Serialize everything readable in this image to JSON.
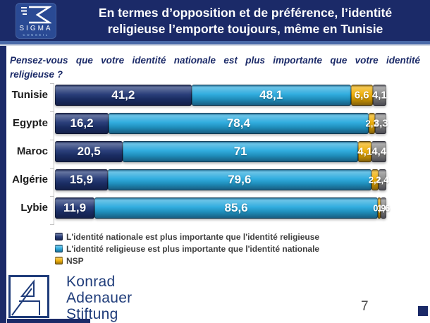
{
  "header": {
    "title_line1": "En termes d’opposition et de préférence, l’identité",
    "title_line2": "religieuse l’emporte toujours, même en Tunisie",
    "logo": {
      "name": "SIGMA",
      "sub": "CONSEIL"
    }
  },
  "question": {
    "full_text": "Pensez-vous que votre identité nationale est plus importante que votre identité religieuse ?",
    "line1": "Pensez-vous que votre identité nationale est plus importante que votre identité",
    "line2": "religieuse ?"
  },
  "chart_data": {
    "type": "bar",
    "orientation": "horizontal",
    "stacked_percent": true,
    "title": "Pensez-vous que votre identité nationale est plus importante que votre identité religieuse ?",
    "xlim": [
      0,
      100
    ],
    "grid": false,
    "legend_position": "bottom-left",
    "categories": [
      "Tunisie",
      "Egypte",
      "Maroc",
      "Algérie",
      "Lybie"
    ],
    "series": [
      {
        "name": "L'identité nationale est plus importante que l'identité religieuse",
        "color": "#1e3473",
        "in_legend": true,
        "values": [
          41.2,
          16.2,
          20.5,
          15.9,
          11.9
        ],
        "labels": [
          "41,2",
          "16,2",
          "20,5",
          "15,9",
          "11,9"
        ]
      },
      {
        "name": "L'identité religieuse est plus importante que l'identité nationale",
        "color": "#25a8dd",
        "in_legend": true,
        "values": [
          48.1,
          78.4,
          71,
          79.6,
          85.6
        ],
        "labels": [
          "48,1",
          "78,4",
          "71",
          "79,6",
          "85,6"
        ]
      },
      {
        "name": "NSP",
        "color": "#f0ae00",
        "in_legend": true,
        "values": [
          6.6,
          2.1,
          4.1,
          2.1,
          0.9
        ],
        "labels": [
          "6,6",
          "2,1",
          "4,1",
          "2,1",
          "0,9"
        ]
      },
      {
        "name": "",
        "color": "#868686",
        "in_legend": false,
        "values": [
          4.1,
          3.3,
          4.4,
          2.4,
          1.6
        ],
        "labels": [
          "4,1",
          "3,3",
          "4,4",
          "2,4",
          "1,6"
        ]
      }
    ]
  },
  "footer": {
    "org_line1": "Konrad",
    "org_line2": "Adenauer",
    "org_line3": "Stiftung",
    "page_number": "7"
  },
  "colors": {
    "header_bg": "#1b2a68",
    "accent_strip": "#4a69a8",
    "question_text": "#1b2a68",
    "kas_navy": "#1f3c7a"
  }
}
